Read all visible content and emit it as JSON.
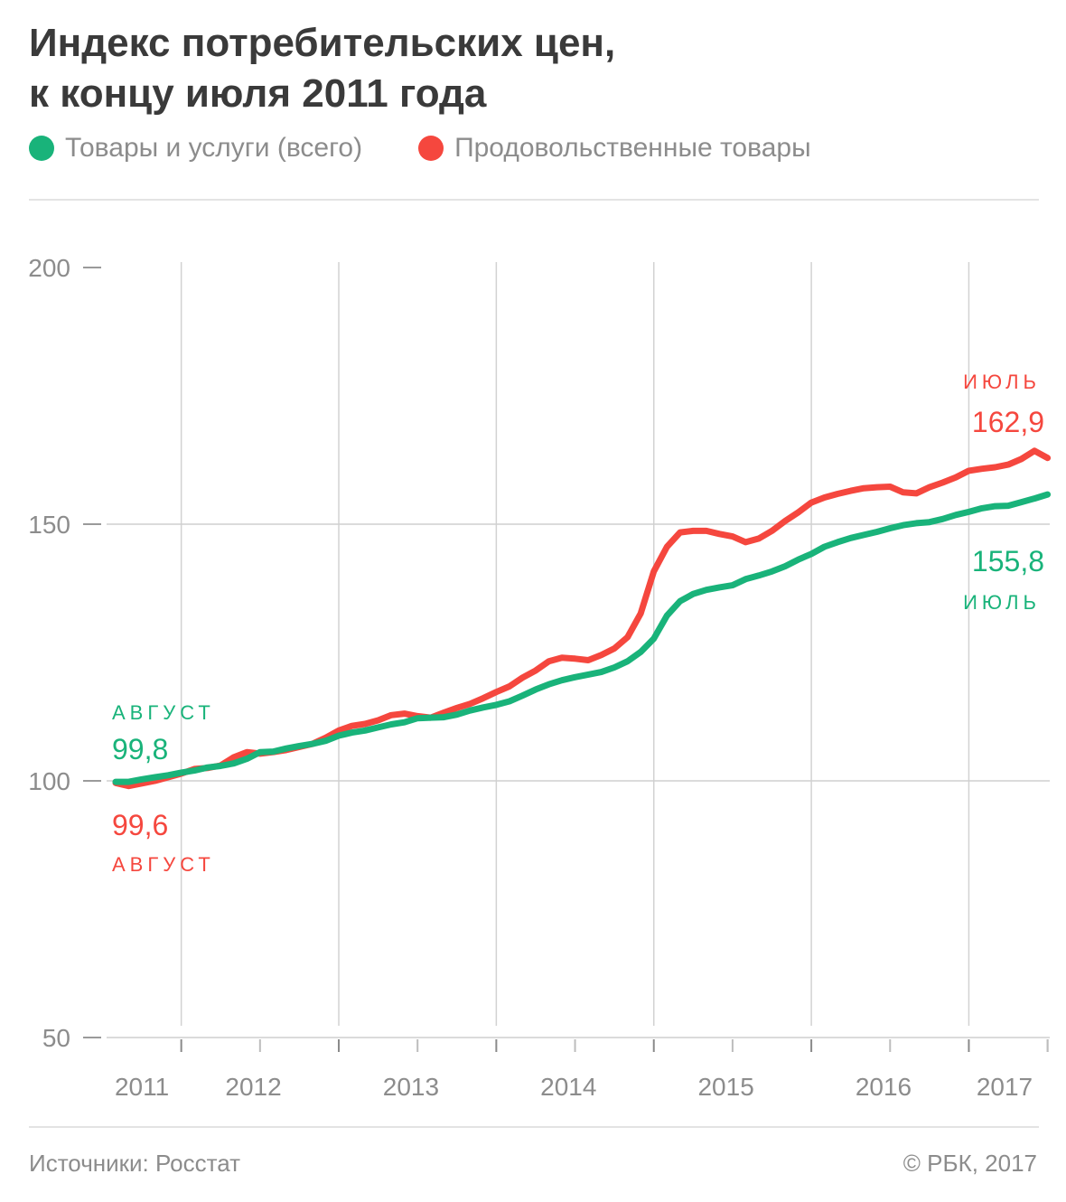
{
  "title_lines": [
    "Индекс потребительских цен,",
    "к концу июля 2011 года"
  ],
  "legend": [
    {
      "label": "Товары и услуги (всего)",
      "color": "#19b37a"
    },
    {
      "label": "Продовольственные товары",
      "color": "#f5473e"
    }
  ],
  "colors": {
    "green": "#19b37a",
    "red": "#f5473e",
    "grid": "#cccccc",
    "text_gray": "#8c8c8c"
  },
  "annotations": {
    "green_start_month": "АВГУСТ",
    "green_start_value": "99,8",
    "red_start_value": "99,6",
    "red_start_month": "АВГУСТ",
    "red_end_month": "ИЮЛЬ",
    "red_end_value": "162,9",
    "green_end_value": "155,8",
    "green_end_month": "ИЮЛЬ"
  },
  "footer": {
    "source": "Источники: Росстат",
    "copyright": "© РБК, 2017"
  },
  "chart_data": {
    "type": "line",
    "title": "Индекс потребительских цен, к концу июля 2011 года",
    "xlabel": "",
    "ylabel": "",
    "ylim": [
      50,
      200
    ],
    "y_ticks": [
      "200",
      "150",
      "100",
      "50"
    ],
    "x_tick_labels": [
      "2011",
      "2012",
      "2013",
      "2014",
      "2015",
      "2016",
      "2017"
    ],
    "x": [
      "2011-08",
      "2011-09",
      "2011-10",
      "2011-11",
      "2011-12",
      "2012-01",
      "2012-02",
      "2012-03",
      "2012-04",
      "2012-05",
      "2012-06",
      "2012-07",
      "2012-08",
      "2012-09",
      "2012-10",
      "2012-11",
      "2012-12",
      "2013-01",
      "2013-02",
      "2013-03",
      "2013-04",
      "2013-05",
      "2013-06",
      "2013-07",
      "2013-08",
      "2013-09",
      "2013-10",
      "2013-11",
      "2013-12",
      "2014-01",
      "2014-02",
      "2014-03",
      "2014-04",
      "2014-05",
      "2014-06",
      "2014-07",
      "2014-08",
      "2014-09",
      "2014-10",
      "2014-11",
      "2014-12",
      "2015-01",
      "2015-02",
      "2015-03",
      "2015-04",
      "2015-05",
      "2015-06",
      "2015-07",
      "2015-08",
      "2015-09",
      "2015-10",
      "2015-11",
      "2015-12",
      "2016-01",
      "2016-02",
      "2016-03",
      "2016-04",
      "2016-05",
      "2016-06",
      "2016-07",
      "2016-08",
      "2016-09",
      "2016-10",
      "2016-11",
      "2016-12",
      "2017-01",
      "2017-02",
      "2017-03",
      "2017-04",
      "2017-05",
      "2017-06",
      "2017-07"
    ],
    "grid": true,
    "legend_position": "top",
    "series": [
      {
        "name": "Товары и услуги (всего)",
        "color": "#19b37a",
        "values": [
          99.8,
          99.8,
          100.3,
          100.7,
          101.1,
          101.6,
          102.0,
          102.6,
          102.9,
          103.4,
          104.3,
          105.6,
          105.7,
          106.3,
          106.8,
          107.2,
          107.8,
          108.8,
          109.4,
          109.8,
          110.4,
          111.0,
          111.4,
          112.2,
          112.3,
          112.4,
          112.9,
          113.7,
          114.3,
          114.8,
          115.5,
          116.6,
          117.8,
          118.8,
          119.6,
          120.2,
          120.7,
          121.2,
          122.1,
          123.3,
          125.1,
          127.7,
          132.2,
          135.0,
          136.4,
          137.2,
          137.7,
          138.1,
          139.3,
          140.0,
          140.8,
          141.8,
          143.1,
          144.2,
          145.6,
          146.5,
          147.3,
          147.9,
          148.5,
          149.2,
          149.8,
          150.2,
          150.4,
          151.0,
          151.8,
          152.4,
          153.1,
          153.5,
          153.6,
          154.3,
          155.0,
          155.8
        ]
      },
      {
        "name": "Продовольственные товары",
        "color": "#f5473e",
        "values": [
          99.6,
          99.0,
          99.5,
          100.0,
          100.7,
          101.4,
          102.3,
          102.5,
          103.0,
          104.6,
          105.6,
          105.3,
          105.6,
          106.0,
          106.6,
          107.2,
          108.4,
          109.8,
          110.7,
          111.1,
          111.8,
          112.8,
          113.1,
          112.6,
          112.3,
          113.3,
          114.2,
          115.0,
          116.1,
          117.3,
          118.4,
          120.1,
          121.5,
          123.3,
          124.0,
          123.8,
          123.5,
          124.5,
          125.8,
          128.0,
          132.6,
          140.8,
          145.6,
          148.4,
          148.7,
          148.7,
          148.1,
          147.6,
          146.5,
          147.2,
          148.7,
          150.6,
          152.3,
          154.2,
          155.2,
          155.9,
          156.5,
          157.0,
          157.2,
          157.3,
          156.2,
          156.0,
          157.2,
          158.1,
          159.1,
          160.4,
          160.8,
          161.1,
          161.6,
          162.7,
          164.3,
          162.9
        ]
      }
    ]
  }
}
